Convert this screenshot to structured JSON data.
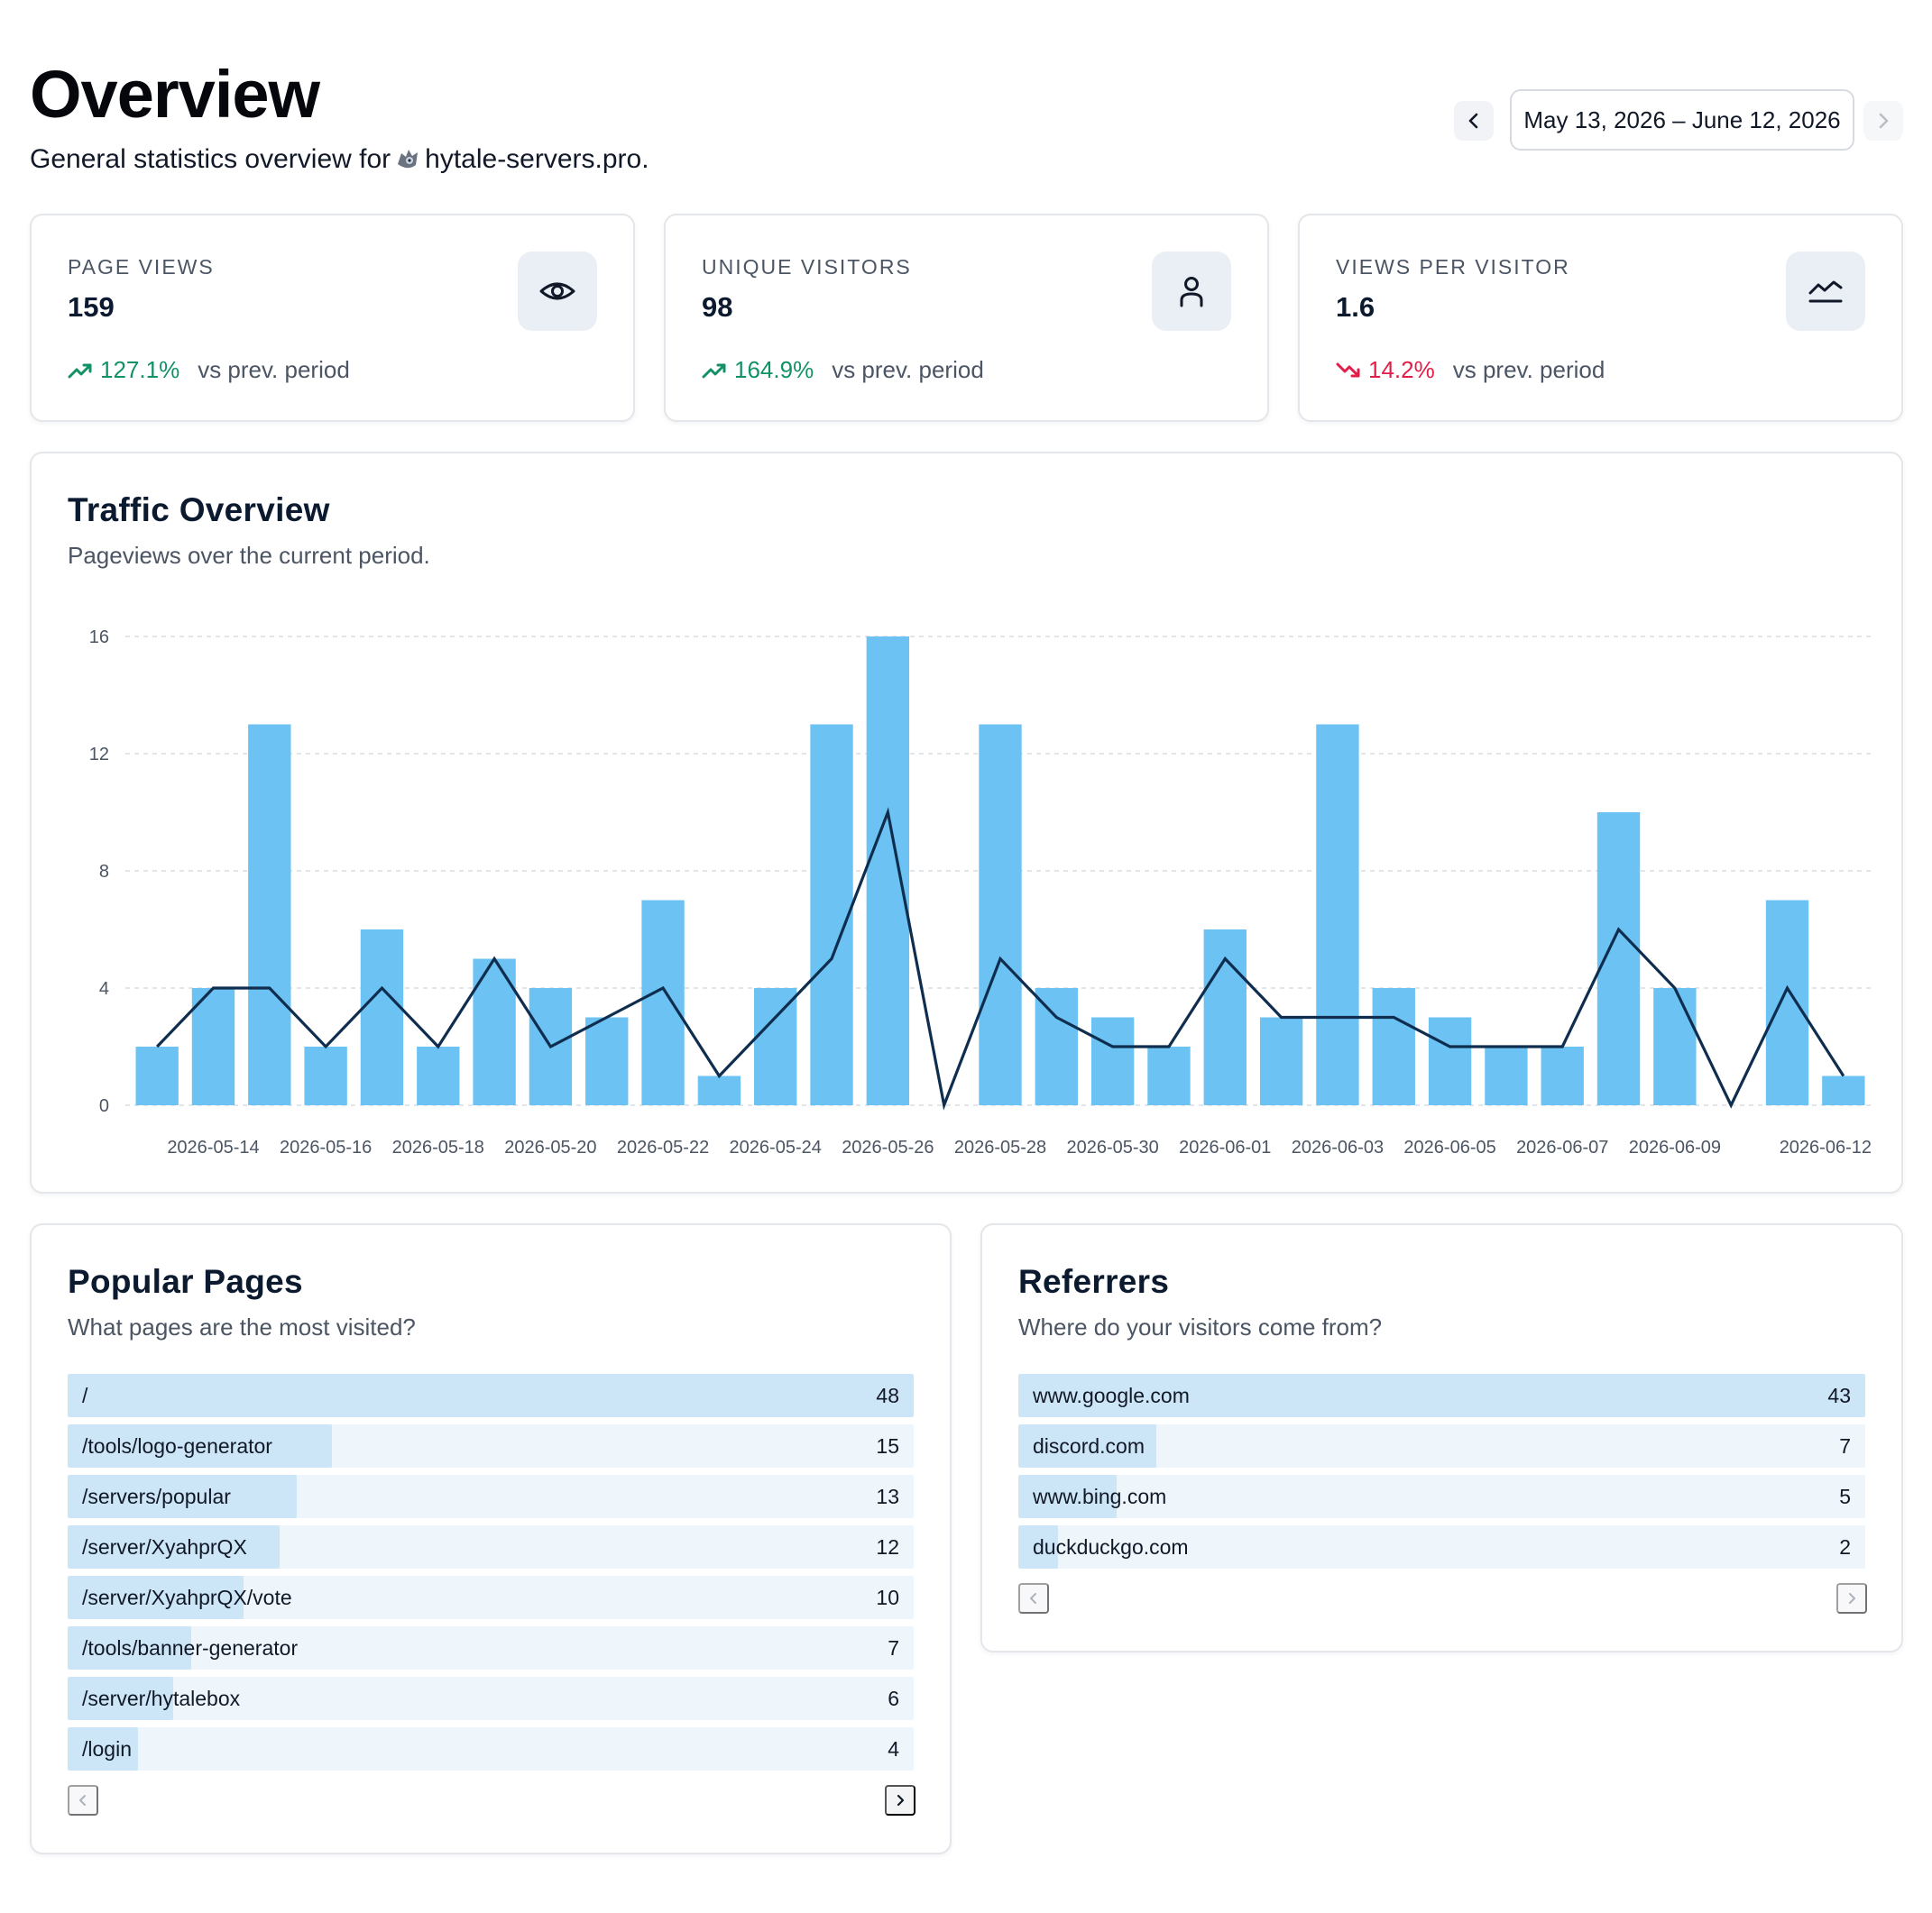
{
  "header": {
    "title": "Overview",
    "subtitle_prefix": "General statistics overview for",
    "site": "hytale-servers.pro.",
    "date_range": "May 13, 2026 – June 12, 2026"
  },
  "stats": [
    {
      "label": "PAGE VIEWS",
      "value": "159",
      "change": "127.1%",
      "trend": "up",
      "compare": "vs prev. period",
      "icon": "eye-icon"
    },
    {
      "label": "UNIQUE VISITORS",
      "value": "98",
      "change": "164.9%",
      "trend": "up",
      "compare": "vs prev. period",
      "icon": "user-icon"
    },
    {
      "label": "VIEWS PER VISITOR",
      "value": "1.6",
      "change": "14.2%",
      "trend": "down",
      "compare": "vs prev. period",
      "icon": "line-chart-icon"
    }
  ],
  "traffic": {
    "title": "Traffic Overview",
    "subtitle": "Pageviews over the current period."
  },
  "chart_data": {
    "type": "bar",
    "x": [
      "2026-05-13",
      "2026-05-14",
      "2026-05-15",
      "2026-05-16",
      "2026-05-17",
      "2026-05-18",
      "2026-05-19",
      "2026-05-20",
      "2026-05-21",
      "2026-05-22",
      "2026-05-23",
      "2026-05-24",
      "2026-05-25",
      "2026-05-26",
      "2026-05-27",
      "2026-05-28",
      "2026-05-29",
      "2026-05-30",
      "2026-05-31",
      "2026-06-01",
      "2026-06-02",
      "2026-06-03",
      "2026-06-04",
      "2026-06-05",
      "2026-06-06",
      "2026-06-07",
      "2026-06-08",
      "2026-06-09",
      "2026-06-10",
      "2026-06-11",
      "2026-06-12"
    ],
    "tick_labels": [
      "2026-05-14",
      "2026-05-16",
      "2026-05-18",
      "2026-05-20",
      "2026-05-22",
      "2026-05-24",
      "2026-05-26",
      "2026-05-28",
      "2026-05-30",
      "2026-06-01",
      "2026-06-03",
      "2026-06-05",
      "2026-06-07",
      "2026-06-09",
      "2026-06-12"
    ],
    "series": [
      {
        "type": "bar",
        "color": "#6cc2f2",
        "values": [
          2,
          4,
          13,
          2,
          6,
          2,
          5,
          4,
          3,
          7,
          1,
          4,
          13,
          16,
          0,
          13,
          4,
          3,
          2,
          6,
          3,
          13,
          4,
          3,
          2,
          2,
          10,
          4,
          0,
          7,
          1
        ]
      },
      {
        "type": "line",
        "color": "#0f2e4f",
        "values": [
          2,
          4,
          4,
          2,
          4,
          2,
          5,
          2,
          3,
          4,
          1,
          3,
          5,
          10,
          0,
          5,
          3,
          2,
          2,
          5,
          3,
          3,
          3,
          2,
          2,
          2,
          6,
          4,
          0,
          4,
          1
        ]
      }
    ],
    "yticks": [
      0,
      4,
      8,
      12,
      16
    ],
    "ylim": [
      0,
      16
    ],
    "grid": true
  },
  "popular_pages": {
    "title": "Popular Pages",
    "subtitle": "What pages are the most visited?",
    "rows": [
      {
        "label": "/",
        "count": "48",
        "value": 48
      },
      {
        "label": "/tools/logo-generator",
        "count": "15",
        "value": 15
      },
      {
        "label": "/servers/popular",
        "count": "13",
        "value": 13
      },
      {
        "label": "/server/XyahprQX",
        "count": "12",
        "value": 12
      },
      {
        "label": "/server/XyahprQX/vote",
        "count": "10",
        "value": 10
      },
      {
        "label": "/tools/banner-generator",
        "count": "7",
        "value": 7
      },
      {
        "label": "/server/hytalebox",
        "count": "6",
        "value": 6
      },
      {
        "label": "/login",
        "count": "4",
        "value": 4
      }
    ]
  },
  "referrers": {
    "title": "Referrers",
    "subtitle": "Where do your visitors come from?",
    "rows": [
      {
        "label": "www.google.com",
        "count": "43",
        "value": 43
      },
      {
        "label": "discord.com",
        "count": "7",
        "value": 7
      },
      {
        "label": "www.bing.com",
        "count": "5",
        "value": 5
      },
      {
        "label": "duckduckgo.com",
        "count": "2",
        "value": 2
      }
    ]
  }
}
